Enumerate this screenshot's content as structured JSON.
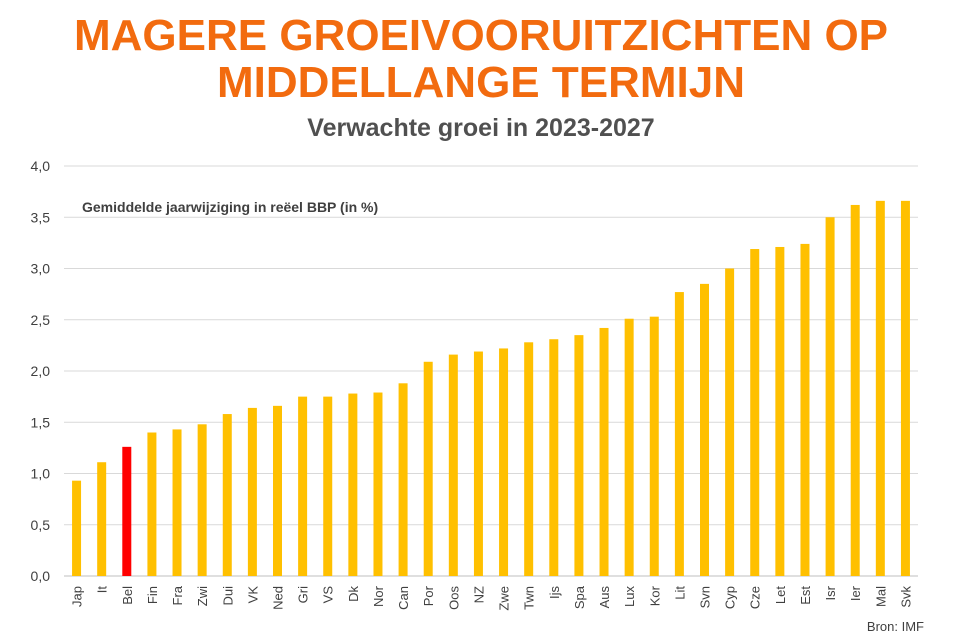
{
  "title_line1": "MAGERE GROEIVOORUITZICHTEN OP",
  "title_line2": "MIDDELLANGE TERMIJN",
  "subtitle": "Verwachte groei in 2023-2027",
  "source": "Bron: IMF",
  "colors": {
    "title": "#f26b0f",
    "bar": "#ffc000",
    "highlight": "#ff0000",
    "grid": "#d9d9d9"
  },
  "chart_data": {
    "type": "bar",
    "annotation": "Gemiddelde jaarwijziging in reëel BBP (in %)",
    "categories": [
      "Jap",
      "It",
      "Bel",
      "Fin",
      "Fra",
      "Zwi",
      "Dui",
      "VK",
      "Ned",
      "Gri",
      "VS",
      "Dk",
      "Nor",
      "Can",
      "Por",
      "Oos",
      "NZ",
      "Zwe",
      "Twn",
      "Ijs",
      "Spa",
      "Aus",
      "Lux",
      "Kor",
      "Lit",
      "Svn",
      "Cyp",
      "Cze",
      "Let",
      "Est",
      "Isr",
      "Ier",
      "Mal",
      "Svk"
    ],
    "values": [
      0.93,
      1.11,
      1.26,
      1.4,
      1.43,
      1.48,
      1.58,
      1.64,
      1.66,
      1.75,
      1.75,
      1.78,
      1.79,
      1.88,
      2.09,
      2.16,
      2.19,
      2.22,
      2.28,
      2.31,
      2.35,
      2.42,
      2.51,
      2.53,
      2.77,
      2.85,
      3.0,
      3.19,
      3.21,
      3.24,
      3.5,
      3.62,
      3.66,
      3.66
    ],
    "highlight_category": "Bel",
    "ylim": [
      0,
      4.0
    ],
    "yticks": [
      "0,0",
      "0,5",
      "1,0",
      "1,5",
      "2,0",
      "2,5",
      "3,0",
      "3,5",
      "4,0"
    ],
    "grid": true
  }
}
